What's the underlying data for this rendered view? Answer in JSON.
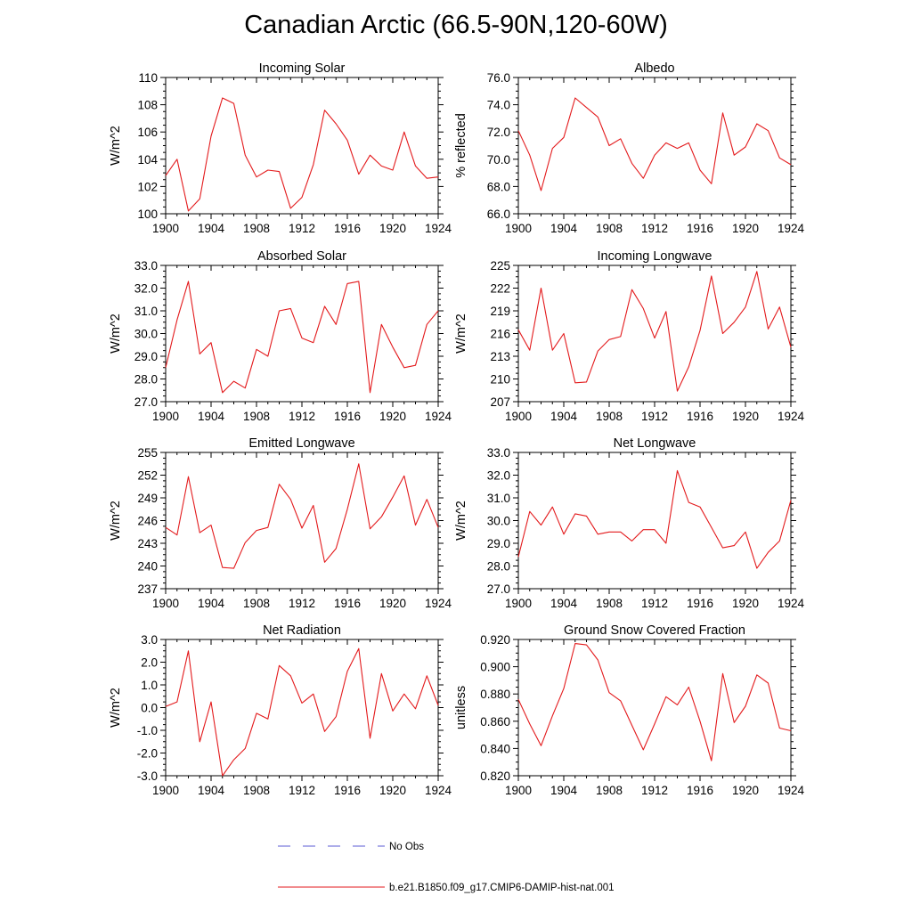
{
  "figure": {
    "title": "Canadian Arctic (66.5-90N,120-60W)"
  },
  "legend": {
    "entries": [
      {
        "label": "No Obs",
        "style": "dashed",
        "color": "#5b5bd6"
      },
      {
        "label": "b.e21.B1850.f09_g17.CMIP6-DAMIP-hist-nat.001",
        "style": "solid",
        "color": "#e31a1c"
      }
    ]
  },
  "chart_data": [
    {
      "type": "line",
      "title": "Incoming Solar",
      "ylabel": "W/m^2",
      "xlim": [
        1900,
        1924
      ],
      "ylim": [
        100,
        110
      ],
      "xticks": [
        "1900",
        "1904",
        "1908",
        "1912",
        "1916",
        "1920",
        "1924"
      ],
      "yticks": [
        "100",
        "102",
        "104",
        "106",
        "108",
        "110"
      ],
      "ytick_values": [
        100,
        102,
        104,
        106,
        108,
        110
      ],
      "color": "#e31a1c",
      "x": [
        1900,
        1901,
        1902,
        1903,
        1904,
        1905,
        1906,
        1907,
        1908,
        1909,
        1910,
        1911,
        1912,
        1913,
        1914,
        1915,
        1916,
        1917,
        1918,
        1919,
        1920,
        1921,
        1922,
        1923,
        1924
      ],
      "values": [
        102.8,
        104.0,
        100.2,
        101.1,
        105.7,
        108.5,
        108.1,
        104.3,
        102.7,
        103.2,
        103.1,
        100.4,
        101.2,
        103.6,
        107.6,
        106.6,
        105.4,
        102.9,
        104.3,
        103.5,
        103.2,
        106.0,
        103.5,
        102.6,
        102.7
      ]
    },
    {
      "type": "line",
      "title": "Albedo",
      "ylabel": "% reflected",
      "xlim": [
        1900,
        1924
      ],
      "ylim": [
        66,
        76
      ],
      "xticks": [
        "1900",
        "1904",
        "1908",
        "1912",
        "1916",
        "1920",
        "1924"
      ],
      "yticks": [
        "66.0",
        "68.0",
        "70.0",
        "72.0",
        "74.0",
        "76.0"
      ],
      "ytick_values": [
        66,
        68,
        70,
        72,
        74,
        76
      ],
      "color": "#e31a1c",
      "x": [
        1900,
        1901,
        1902,
        1903,
        1904,
        1905,
        1906,
        1907,
        1908,
        1909,
        1910,
        1911,
        1912,
        1913,
        1914,
        1915,
        1916,
        1917,
        1918,
        1919,
        1920,
        1921,
        1922,
        1923,
        1924
      ],
      "values": [
        72.1,
        70.3,
        67.7,
        70.8,
        71.6,
        74.5,
        73.8,
        73.1,
        71.0,
        71.5,
        69.7,
        68.6,
        70.3,
        71.2,
        70.8,
        71.2,
        69.2,
        68.2,
        73.4,
        70.3,
        70.9,
        72.6,
        72.1,
        70.1,
        69.6
      ]
    },
    {
      "type": "line",
      "title": "Absorbed Solar",
      "ylabel": "W/m^2",
      "xlim": [
        1900,
        1924
      ],
      "ylim": [
        27,
        33
      ],
      "xticks": [
        "1900",
        "1904",
        "1908",
        "1912",
        "1916",
        "1920",
        "1924"
      ],
      "yticks": [
        "27.0",
        "28.0",
        "29.0",
        "30.0",
        "31.0",
        "32.0",
        "33.0"
      ],
      "ytick_values": [
        27,
        28,
        29,
        30,
        31,
        32,
        33
      ],
      "color": "#e31a1c",
      "x": [
        1900,
        1901,
        1902,
        1903,
        1904,
        1905,
        1906,
        1907,
        1908,
        1909,
        1910,
        1911,
        1912,
        1913,
        1914,
        1915,
        1916,
        1917,
        1918,
        1919,
        1920,
        1921,
        1922,
        1923,
        1924
      ],
      "values": [
        28.5,
        30.6,
        32.3,
        29.1,
        29.6,
        27.4,
        27.9,
        27.6,
        29.3,
        29.0,
        31.0,
        31.1,
        29.8,
        29.6,
        31.2,
        30.4,
        32.2,
        32.3,
        27.4,
        30.4,
        29.4,
        28.5,
        28.6,
        30.4,
        31.0
      ]
    },
    {
      "type": "line",
      "title": "Incoming Longwave",
      "ylabel": "W/m^2",
      "xlim": [
        1900,
        1924
      ],
      "ylim": [
        207,
        225
      ],
      "xticks": [
        "1900",
        "1904",
        "1908",
        "1912",
        "1916",
        "1920",
        "1924"
      ],
      "yticks": [
        "207",
        "210",
        "213",
        "216",
        "219",
        "222",
        "225"
      ],
      "ytick_values": [
        207,
        210,
        213,
        216,
        219,
        222,
        225
      ],
      "color": "#e31a1c",
      "x": [
        1900,
        1901,
        1902,
        1903,
        1904,
        1905,
        1906,
        1907,
        1908,
        1909,
        1910,
        1911,
        1912,
        1913,
        1914,
        1915,
        1916,
        1917,
        1918,
        1919,
        1920,
        1921,
        1922,
        1923,
        1924
      ],
      "values": [
        216.5,
        213.8,
        222.0,
        213.8,
        216.0,
        209.5,
        209.6,
        213.7,
        215.2,
        215.6,
        221.8,
        219.3,
        215.4,
        218.9,
        208.4,
        211.6,
        216.4,
        223.6,
        216.0,
        217.5,
        219.5,
        224.2,
        216.6,
        219.5,
        214.2
      ]
    },
    {
      "type": "line",
      "title": "Emitted Longwave",
      "ylabel": "W/m^2",
      "xlim": [
        1900,
        1924
      ],
      "ylim": [
        237,
        255
      ],
      "xticks": [
        "1900",
        "1904",
        "1908",
        "1912",
        "1916",
        "1920",
        "1924"
      ],
      "yticks": [
        "237",
        "240",
        "243",
        "246",
        "249",
        "252",
        "255"
      ],
      "ytick_values": [
        237,
        240,
        243,
        246,
        249,
        252,
        255
      ],
      "color": "#e31a1c",
      "x": [
        1900,
        1901,
        1902,
        1903,
        1904,
        1905,
        1906,
        1907,
        1908,
        1909,
        1910,
        1911,
        1912,
        1913,
        1914,
        1915,
        1916,
        1917,
        1918,
        1919,
        1920,
        1921,
        1922,
        1923,
        1924
      ],
      "values": [
        245.1,
        244.1,
        251.8,
        244.4,
        245.4,
        239.8,
        239.7,
        243.1,
        244.7,
        245.1,
        250.8,
        248.8,
        245.0,
        248.0,
        240.5,
        242.3,
        247.5,
        253.5,
        244.9,
        246.5,
        249.1,
        251.9,
        245.4,
        248.8,
        245.1
      ]
    },
    {
      "type": "line",
      "title": "Net Longwave",
      "ylabel": "W/m^2",
      "xlim": [
        1900,
        1924
      ],
      "ylim": [
        27,
        33
      ],
      "xticks": [
        "1900",
        "1904",
        "1908",
        "1912",
        "1916",
        "1920",
        "1924"
      ],
      "yticks": [
        "27.0",
        "28.0",
        "29.0",
        "30.0",
        "31.0",
        "32.0",
        "33.0"
      ],
      "ytick_values": [
        27,
        28,
        29,
        30,
        31,
        32,
        33
      ],
      "color": "#e31a1c",
      "x": [
        1900,
        1901,
        1902,
        1903,
        1904,
        1905,
        1906,
        1907,
        1908,
        1909,
        1910,
        1911,
        1912,
        1913,
        1914,
        1915,
        1916,
        1917,
        1918,
        1919,
        1920,
        1921,
        1922,
        1923,
        1924
      ],
      "values": [
        28.4,
        30.4,
        29.8,
        30.6,
        29.4,
        30.3,
        30.2,
        29.4,
        29.5,
        29.5,
        29.1,
        29.6,
        29.6,
        29.0,
        32.2,
        30.8,
        30.6,
        29.7,
        28.8,
        28.9,
        29.5,
        27.9,
        28.6,
        29.1,
        30.9
      ]
    },
    {
      "type": "line",
      "title": "Net Radiation",
      "ylabel": "W/m^2",
      "xlim": [
        1900,
        1924
      ],
      "ylim": [
        -3,
        3
      ],
      "xticks": [
        "1900",
        "1904",
        "1908",
        "1912",
        "1916",
        "1920",
        "1924"
      ],
      "yticks": [
        "-3.0",
        "-2.0",
        "-1.0",
        "0.0",
        "1.0",
        "2.0",
        "3.0"
      ],
      "ytick_values": [
        -3,
        -2,
        -1,
        0,
        1,
        2,
        3
      ],
      "color": "#e31a1c",
      "x": [
        1900,
        1901,
        1902,
        1903,
        1904,
        1905,
        1906,
        1907,
        1908,
        1909,
        1910,
        1911,
        1912,
        1913,
        1914,
        1915,
        1916,
        1917,
        1918,
        1919,
        1920,
        1921,
        1922,
        1923,
        1924
      ],
      "values": [
        0.05,
        0.25,
        2.5,
        -1.5,
        0.25,
        -3.0,
        -2.3,
        -1.8,
        -0.25,
        -0.5,
        1.85,
        1.4,
        0.2,
        0.6,
        -1.05,
        -0.4,
        1.6,
        2.6,
        -1.35,
        1.5,
        -0.15,
        0.6,
        -0.05,
        1.4,
        0.1
      ]
    },
    {
      "type": "line",
      "title": "Ground Snow Covered Fraction",
      "ylabel": "unitless",
      "xlim": [
        1900,
        1924
      ],
      "ylim": [
        0.82,
        0.92
      ],
      "xticks": [
        "1900",
        "1904",
        "1908",
        "1912",
        "1916",
        "1920",
        "1924"
      ],
      "yticks": [
        "0.820",
        "0.840",
        "0.860",
        "0.880",
        "0.900",
        "0.920"
      ],
      "ytick_values": [
        0.82,
        0.84,
        0.86,
        0.88,
        0.9,
        0.92
      ],
      "color": "#e31a1c",
      "x": [
        1900,
        1901,
        1902,
        1903,
        1904,
        1905,
        1906,
        1907,
        1908,
        1909,
        1910,
        1911,
        1912,
        1913,
        1914,
        1915,
        1916,
        1917,
        1918,
        1919,
        1920,
        1921,
        1922,
        1923,
        1924
      ],
      "values": [
        0.876,
        0.858,
        0.842,
        0.864,
        0.884,
        0.917,
        0.916,
        0.905,
        0.881,
        0.875,
        0.857,
        0.839,
        0.858,
        0.878,
        0.872,
        0.885,
        0.86,
        0.831,
        0.895,
        0.859,
        0.871,
        0.894,
        0.888,
        0.855,
        0.853
      ]
    }
  ]
}
